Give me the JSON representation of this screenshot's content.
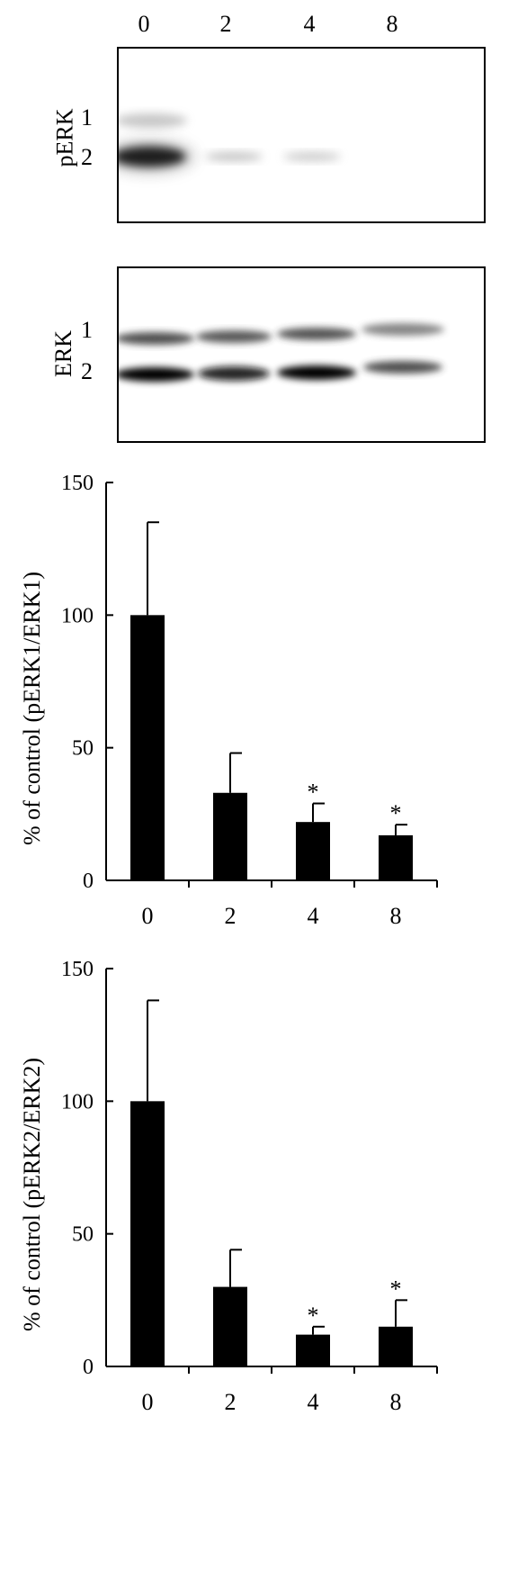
{
  "lanes": [
    "0",
    "2",
    "4",
    "8"
  ],
  "blots": {
    "perk": {
      "label": "pERK",
      "band1": "1",
      "band2": "2"
    },
    "erk": {
      "label": "ERK",
      "band1": "1",
      "band2": "2"
    }
  },
  "chart_data": [
    {
      "type": "bar",
      "categories": [
        "0",
        "2",
        "4",
        "8"
      ],
      "values": [
        100,
        33,
        22,
        17
      ],
      "errors": [
        35,
        15,
        7,
        4
      ],
      "significance": [
        "",
        "",
        "*",
        "*"
      ],
      "ylabel": "% of control (pERK1/ERK1)",
      "xlabel": "",
      "ylim": [
        0,
        150
      ],
      "yticks": [
        "0",
        "50",
        "100",
        "150"
      ],
      "bar_color": "#000000"
    },
    {
      "type": "bar",
      "categories": [
        "0",
        "2",
        "4",
        "8"
      ],
      "values": [
        100,
        30,
        12,
        15
      ],
      "errors": [
        38,
        14,
        3,
        10
      ],
      "significance": [
        "",
        "",
        "*",
        "*"
      ],
      "ylabel": "% of control (pERK2/ERK2)",
      "xlabel": "",
      "ylim": [
        0,
        150
      ],
      "yticks": [
        "0",
        "50",
        "100",
        "150"
      ],
      "bar_color": "#000000"
    }
  ]
}
